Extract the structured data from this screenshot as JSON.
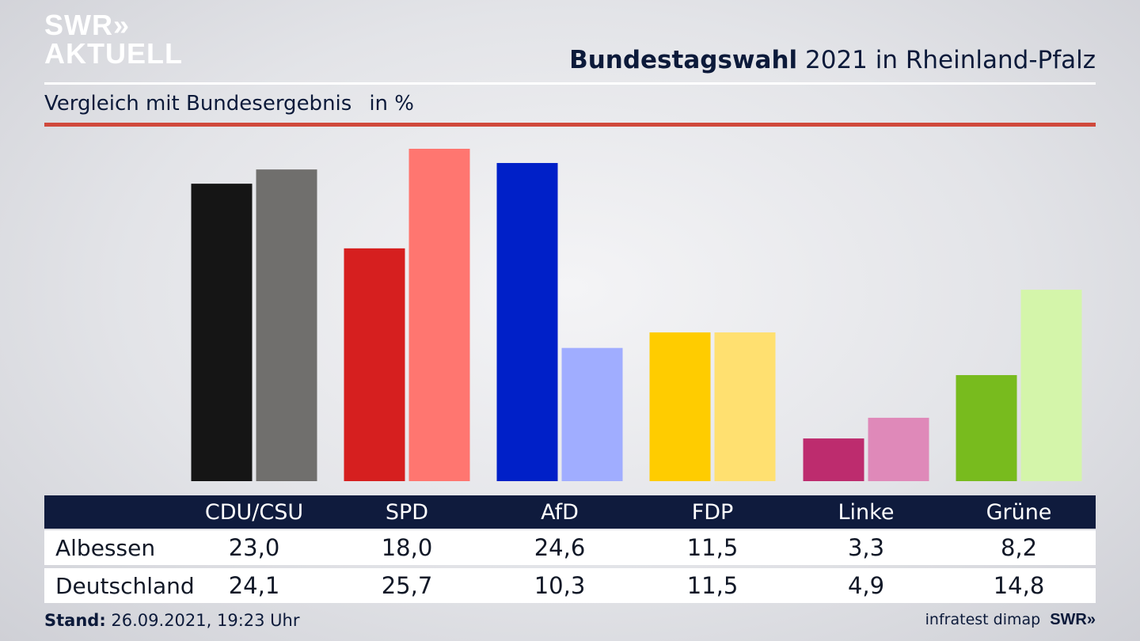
{
  "logo": {
    "line1": "SWR»",
    "line2": "AKTUELL"
  },
  "header": {
    "title_bold": "Bundestagswahl",
    "title_rest": " 2021 in Rheinland-Pfalz",
    "subtitle": "Vergleich mit Bundesergebnis",
    "unit": "in %"
  },
  "chart_data": {
    "type": "bar",
    "categories": [
      "CDU/CSU",
      "SPD",
      "AfD",
      "FDP",
      "Linke",
      "Grüne"
    ],
    "series": [
      {
        "name": "Albessen",
        "values": [
          23.0,
          18.0,
          24.6,
          11.5,
          3.3,
          8.2
        ],
        "colors": [
          "#151515",
          "#d61f1f",
          "#0020c8",
          "#ffcc00",
          "#bd2c6e",
          "#78bb1e"
        ]
      },
      {
        "name": "Deutschland",
        "values": [
          24.1,
          25.7,
          10.3,
          11.5,
          4.9,
          14.8
        ],
        "colors": [
          "#706f6d",
          "#ff7670",
          "#a0adff",
          "#ffe070",
          "#df89b9",
          "#d4f5aa"
        ]
      }
    ],
    "value_labels": {
      "Albessen": [
        "23,0",
        "18,0",
        "24,6",
        "11,5",
        "3,3",
        "8,2"
      ],
      "Deutschland": [
        "24,1",
        "25,7",
        "10,3",
        "11,5",
        "4,9",
        "14,8"
      ]
    },
    "ylim": [
      0,
      25.7
    ],
    "grid": false,
    "legend": "table below chart"
  },
  "footer": {
    "stand_label": "Stand:",
    "stand_value": " 26.09.2021, 19:23 Uhr",
    "source": "infratest dimap",
    "brand": "SWR»"
  }
}
